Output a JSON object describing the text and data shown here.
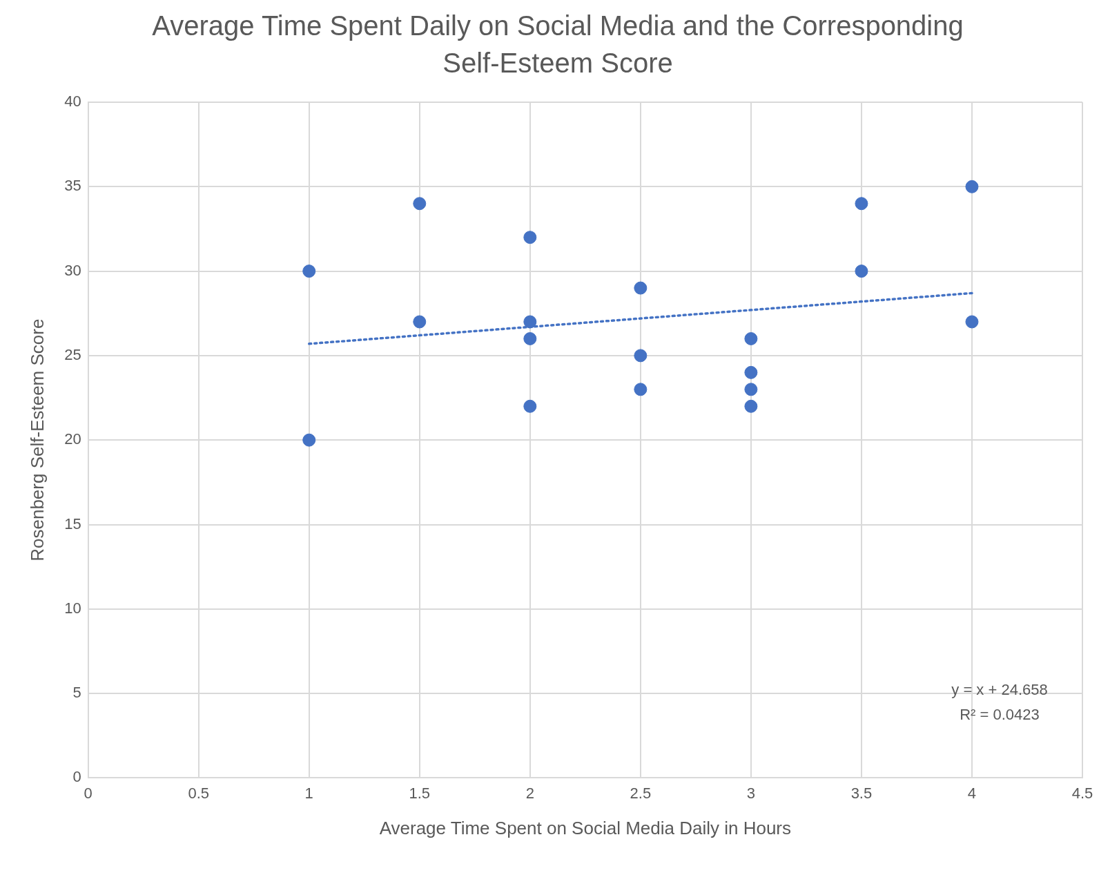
{
  "chart_data": {
    "type": "scatter",
    "title": "Average Time Spent Daily on Social Media and the Corresponding Self-Esteem Score",
    "xlabel": "Average Time Spent on Social Media Daily in Hours",
    "ylabel": "Rosenberg Self-Esteem Score",
    "series": [
      {
        "type": "scatter",
        "color": "#4472c4",
        "marker": "circle",
        "x": [
          1,
          1,
          1.5,
          1.5,
          2,
          2,
          2,
          2,
          2.5,
          2.5,
          2.5,
          3,
          3,
          3,
          3,
          3.5,
          3.5,
          4,
          4
        ],
        "values": [
          30,
          20,
          34,
          27,
          32,
          27,
          26,
          22,
          29,
          25,
          23,
          26,
          24,
          23,
          22,
          34,
          30,
          35,
          27
        ]
      },
      {
        "type": "line",
        "color": "#4472c4",
        "marker": "none",
        "line_style": "dotted",
        "x": [
          1,
          4
        ],
        "values": [
          25.7,
          28.7
        ]
      }
    ],
    "xlim": [
      0,
      4.5
    ],
    "xticks": [
      0,
      0.5,
      1,
      1.5,
      2,
      2.5,
      3,
      3.5,
      4,
      4.5
    ],
    "ylim": [
      0,
      40
    ],
    "yticks": [
      0,
      5,
      10,
      15,
      20,
      25,
      30,
      35,
      40
    ],
    "grid": true,
    "legend": false,
    "annotations": [
      "y = x + 24.658",
      "R² = 0.0423"
    ]
  }
}
